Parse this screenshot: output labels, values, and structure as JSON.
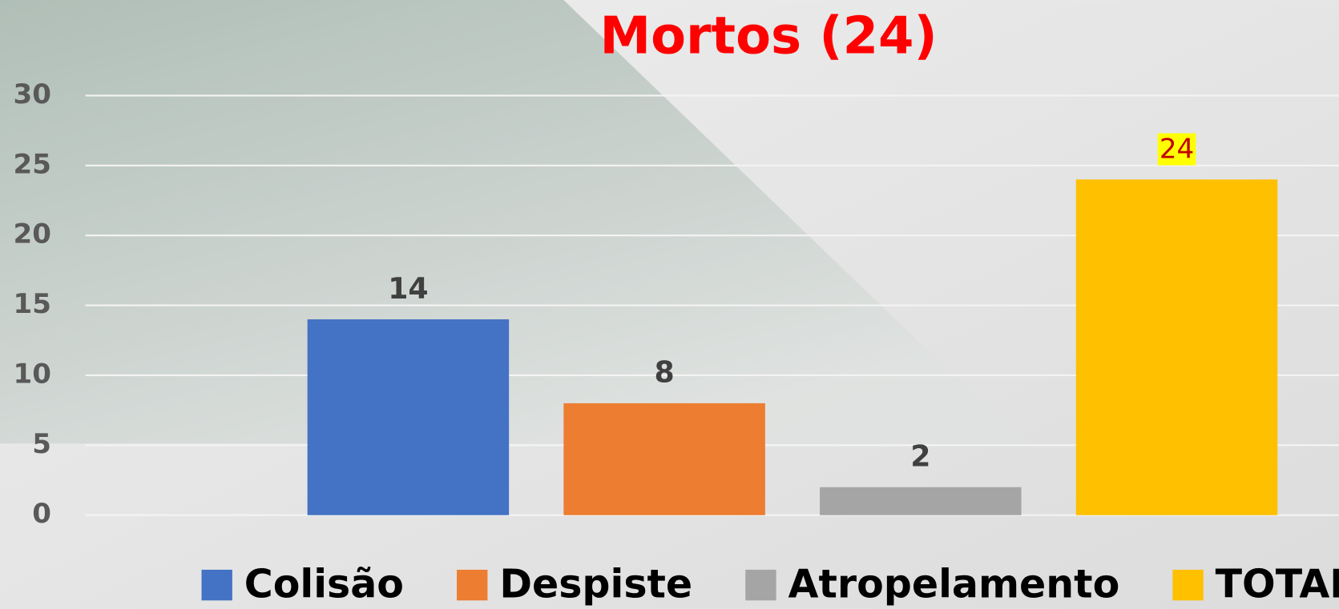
{
  "chart_data": {
    "type": "bar",
    "title": "Mortos (24)",
    "categories": [
      null
    ],
    "series": [
      {
        "name": "Colisão",
        "color": "#4472c4",
        "values": [
          14
        ]
      },
      {
        "name": "Despiste",
        "color": "#ed7d31",
        "values": [
          8
        ]
      },
      {
        "name": "Atropelamento",
        "color": "#a5a5a5",
        "values": [
          2
        ]
      },
      {
        "name": "TOTAL",
        "color": "#ffc000",
        "values": [
          24
        ],
        "label_background": "#ffff00",
        "label_color": "#c00000"
      }
    ],
    "ylim": [
      0,
      30
    ],
    "yticks": [
      0,
      5,
      10,
      15,
      20,
      25,
      30
    ],
    "grid": true,
    "legend": "bottom"
  }
}
